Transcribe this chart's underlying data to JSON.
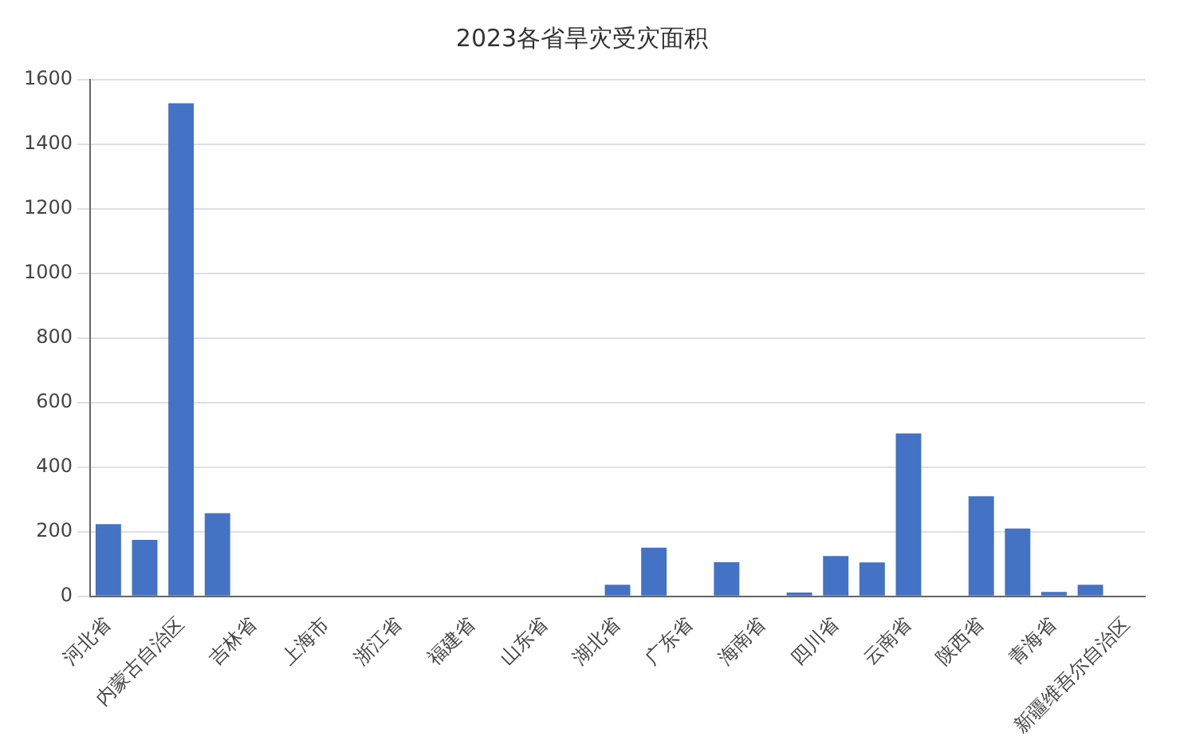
{
  "chart_data": {
    "type": "bar",
    "title": "2023各省旱灾受灾面积",
    "categories": [
      "河北省",
      null,
      "内蒙古自治区",
      null,
      "吉林省",
      null,
      "上海市",
      null,
      "浙江省",
      null,
      "福建省",
      null,
      "山东省",
      null,
      "湖北省",
      null,
      "广东省",
      null,
      "海南省",
      null,
      "四川省",
      null,
      "云南省",
      null,
      "陕西省",
      null,
      "青海省",
      null,
      "新疆维吾尔自治区"
    ],
    "series": [
      {
        "color": "#4472c4",
        "values": [
          224,
          175,
          1527,
          258,
          0,
          0,
          0,
          0,
          0,
          0,
          0,
          0,
          0,
          0,
          36,
          151,
          0,
          106,
          0,
          12,
          125,
          105,
          505,
          0,
          310,
          210,
          14,
          36,
          0
        ]
      }
    ],
    "ylim": [
      0,
      1600
    ],
    "yticks": [
      0,
      200,
      400,
      600,
      800,
      1000,
      1200,
      1400,
      1600
    ],
    "grid": "y",
    "legend": false
  }
}
